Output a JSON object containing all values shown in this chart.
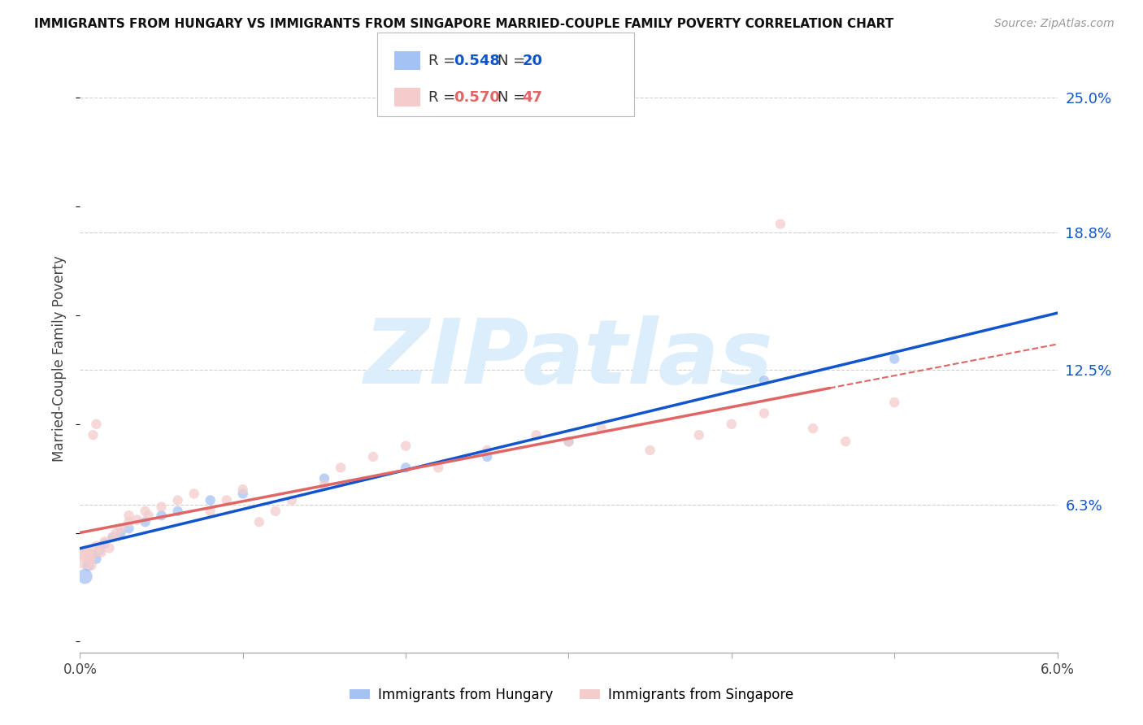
{
  "title": "IMMIGRANTS FROM HUNGARY VS IMMIGRANTS FROM SINGAPORE MARRIED-COUPLE FAMILY POVERTY CORRELATION CHART",
  "source": "Source: ZipAtlas.com",
  "ylabel": "Married-Couple Family Poverty",
  "xlim": [
    0.0,
    0.06
  ],
  "ylim": [
    -0.005,
    0.265
  ],
  "ytick_labels": [
    "25.0%",
    "18.8%",
    "12.5%",
    "6.3%"
  ],
  "ytick_vals": [
    0.25,
    0.188,
    0.125,
    0.063
  ],
  "xtick_positions": [
    0.0,
    0.01,
    0.02,
    0.03,
    0.04,
    0.05,
    0.06
  ],
  "xtick_labels": [
    "0.0%",
    "",
    "",
    "",
    "",
    "",
    "6.0%"
  ],
  "hungary_R": 0.548,
  "hungary_N": 20,
  "singapore_R": 0.57,
  "singapore_N": 47,
  "hungary_color": "#a4c2f4",
  "singapore_color": "#f4cccc",
  "hungary_line_color": "#1155cc",
  "singapore_line_color": "#e06666",
  "watermark": "ZIPatlas",
  "watermark_color": "#dceefb",
  "hungary_x": [
    0.0003,
    0.0005,
    0.0008,
    0.001,
    0.0012,
    0.0015,
    0.002,
    0.0025,
    0.003,
    0.004,
    0.005,
    0.006,
    0.008,
    0.01,
    0.015,
    0.02,
    0.025,
    0.03,
    0.042,
    0.05
  ],
  "hungary_y": [
    0.03,
    0.035,
    0.04,
    0.038,
    0.042,
    0.045,
    0.048,
    0.05,
    0.052,
    0.055,
    0.058,
    0.06,
    0.065,
    0.068,
    0.075,
    0.08,
    0.085,
    0.092,
    0.12,
    0.13
  ],
  "hungary_sizes": [
    180,
    100,
    80,
    80,
    80,
    80,
    80,
    80,
    80,
    80,
    80,
    80,
    80,
    80,
    80,
    80,
    80,
    80,
    80,
    80
  ],
  "singapore_x": [
    0.0003,
    0.0004,
    0.0005,
    0.0006,
    0.0007,
    0.0008,
    0.001,
    0.0012,
    0.0013,
    0.0015,
    0.0018,
    0.002,
    0.0022,
    0.0025,
    0.003,
    0.003,
    0.0035,
    0.004,
    0.0042,
    0.005,
    0.006,
    0.007,
    0.008,
    0.009,
    0.01,
    0.011,
    0.012,
    0.013,
    0.015,
    0.016,
    0.018,
    0.02,
    0.022,
    0.025,
    0.028,
    0.03,
    0.032,
    0.035,
    0.038,
    0.04,
    0.042,
    0.043,
    0.045,
    0.047,
    0.05,
    0.0008,
    0.001
  ],
  "singapore_y": [
    0.038,
    0.04,
    0.042,
    0.038,
    0.035,
    0.04,
    0.044,
    0.043,
    0.041,
    0.046,
    0.043,
    0.048,
    0.05,
    0.052,
    0.055,
    0.058,
    0.056,
    0.06,
    0.058,
    0.062,
    0.065,
    0.068,
    0.06,
    0.065,
    0.07,
    0.055,
    0.06,
    0.065,
    0.072,
    0.08,
    0.085,
    0.09,
    0.08,
    0.088,
    0.095,
    0.092,
    0.098,
    0.088,
    0.095,
    0.1,
    0.105,
    0.192,
    0.098,
    0.092,
    0.11,
    0.095,
    0.1
  ],
  "singapore_sizes": [
    320,
    180,
    80,
    80,
    80,
    80,
    80,
    80,
    80,
    80,
    80,
    80,
    80,
    80,
    80,
    80,
    80,
    80,
    80,
    80,
    80,
    80,
    80,
    80,
    80,
    80,
    80,
    80,
    80,
    80,
    80,
    80,
    80,
    80,
    80,
    80,
    80,
    80,
    80,
    80,
    80,
    80,
    80,
    80,
    80,
    80,
    80
  ]
}
